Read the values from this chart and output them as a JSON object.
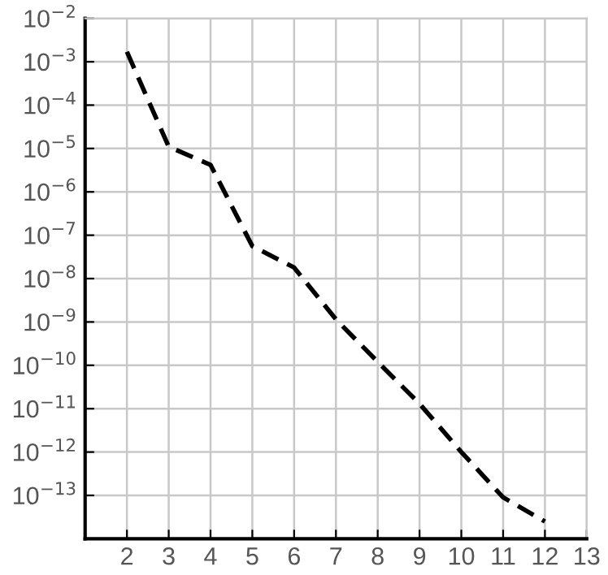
{
  "chart_data": {
    "type": "line",
    "x": [
      2,
      3,
      4,
      5,
      6,
      7,
      8,
      9,
      10,
      11,
      12
    ],
    "series": [
      {
        "color": "#000000",
        "line_style": "dashed",
        "marker": "none",
        "values": [
          0.0017,
          1.1e-05,
          4.2e-06,
          5.6e-08,
          1.8e-08,
          1.15e-09,
          1.2e-10,
          1.3e-11,
          1e-12,
          9e-14,
          2.5e-14
        ]
      }
    ],
    "log": "y",
    "xlim": [
      1,
      13
    ],
    "ylim": [
      1e-14,
      0.01
    ],
    "xticks": [
      2,
      3,
      4,
      5,
      6,
      7,
      8,
      9,
      10,
      11,
      12,
      13
    ],
    "yticks": [
      {
        "value": 1e-13,
        "label": "10$^{−13}$"
      },
      {
        "value": 1e-12,
        "label": "10$^{−12}$"
      },
      {
        "value": 1e-11,
        "label": "10$^{−11}$"
      },
      {
        "value": 1e-10,
        "label": "10$^{−10}$"
      },
      {
        "value": 1e-09,
        "label": "10$^{−9}$"
      },
      {
        "value": 1e-08,
        "label": "10$^{−8}$"
      },
      {
        "value": 1e-07,
        "label": "10$^{−7}$"
      },
      {
        "value": 1e-06,
        "label": "10$^{−6}$"
      },
      {
        "value": 1e-05,
        "label": "10$^{−5}$"
      },
      {
        "value": 0.0001,
        "label": "10$^{−4}$"
      },
      {
        "value": 0.001,
        "label": "10$^{−3}$"
      },
      {
        "value": 0.01,
        "label": "10$^{−2}$"
      }
    ],
    "grid": true
  }
}
